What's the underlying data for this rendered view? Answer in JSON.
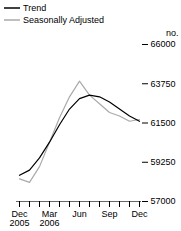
{
  "chart_data": {
    "type": "line",
    "ylabel": "no.",
    "categories": [
      "Dec\n2005",
      null,
      null,
      "Mar\n2006",
      null,
      null,
      "Jun",
      null,
      null,
      "Sep",
      null,
      null,
      "Dec"
    ],
    "series": [
      {
        "name": "Trend",
        "color": "#000000",
        "values": [
          58500,
          58800,
          59500,
          60400,
          61400,
          62300,
          62900,
          63100,
          63000,
          62700,
          62300,
          61900,
          61600
        ]
      },
      {
        "name": "Seasonally Adjusted",
        "color": "#aaaaaa",
        "values": [
          58300,
          58100,
          59000,
          60400,
          61800,
          63000,
          63900,
          63100,
          62600,
          62100,
          61900,
          61600,
          61700
        ]
      }
    ],
    "ylim": [
      57000,
      66000
    ],
    "yticks": [
      57000,
      59250,
      61500,
      63750,
      66000
    ],
    "legend": "upper left",
    "grid": false
  }
}
